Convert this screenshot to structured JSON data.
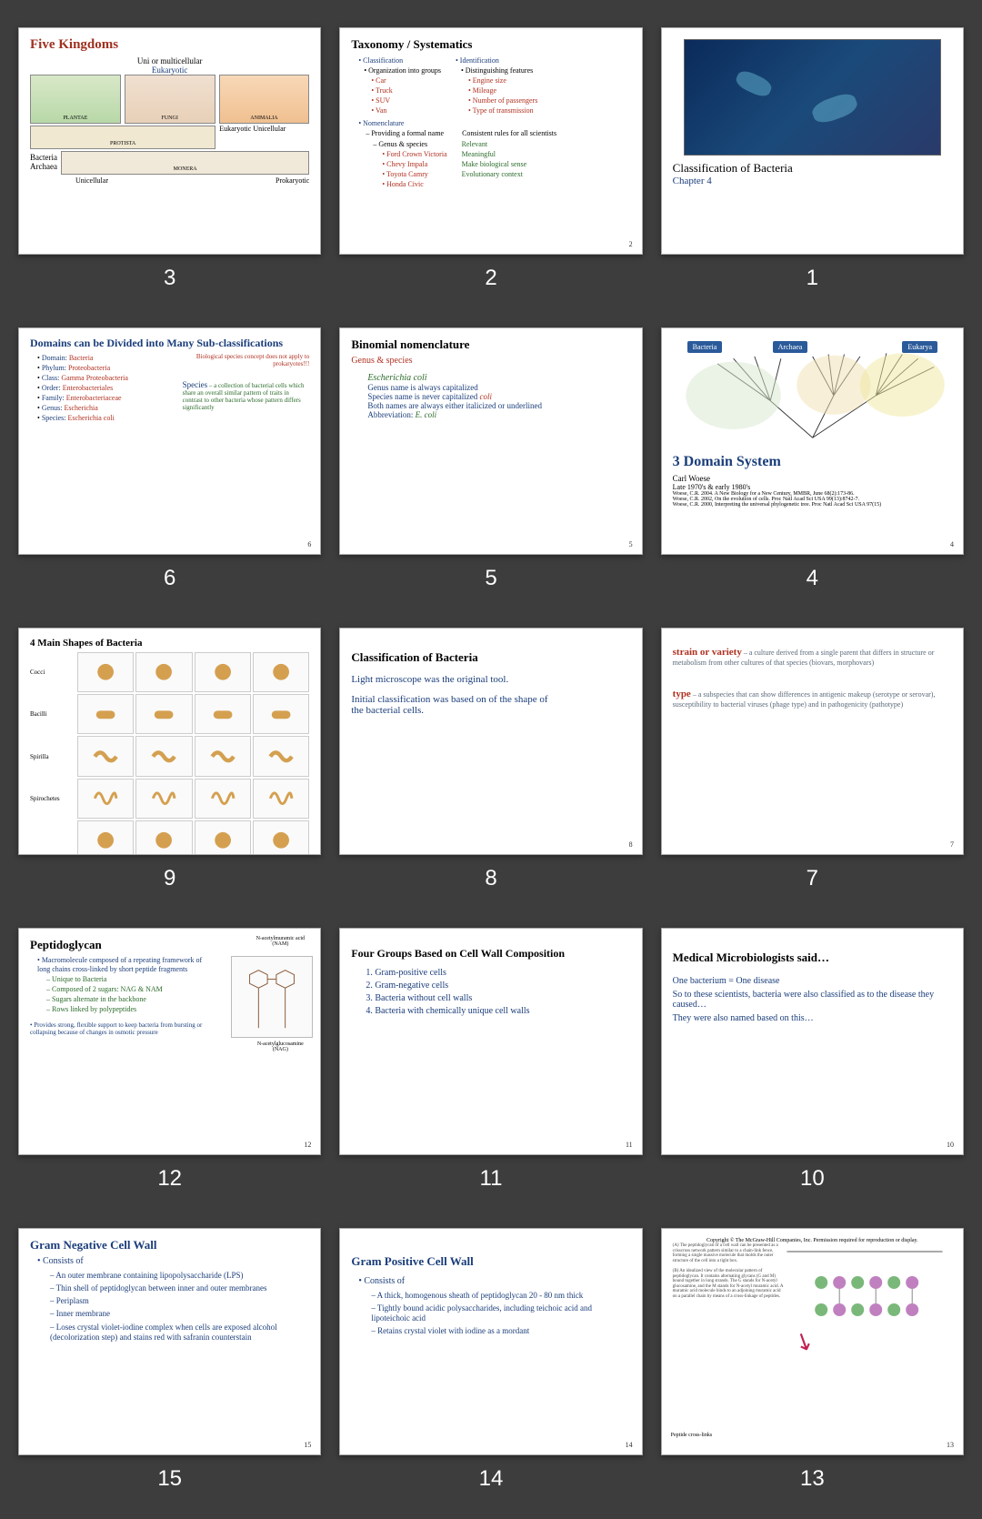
{
  "labels": [
    "3",
    "2",
    "1",
    "6",
    "5",
    "4",
    "9",
    "8",
    "7",
    "12",
    "11",
    "10",
    "15",
    "14",
    "13"
  ],
  "slides": {
    "s3": {
      "title": "Five Kingdoms",
      "uni_multi": "Uni or multicellular",
      "eukaryotic": "Eukaryotic",
      "plantae": "PLANTAE",
      "fungi": "FUNGI",
      "animalia": "ANIMALIA",
      "protista": "PROTISTA",
      "monera": "MONERA",
      "euk_uni": "Eukaryotic Unicellular",
      "bacteria": "Bacteria",
      "archaea": "Archaea",
      "unicellular": "Unicellular",
      "prokaryotic": "Prokaryotic"
    },
    "s2": {
      "title": "Taxonomy / Systematics",
      "classification": "Classification",
      "org": "Organization into groups",
      "vehicles": [
        "Car",
        "Truck",
        "SUV",
        "Van"
      ],
      "identification": "Identification",
      "dist": "Distinguishing features",
      "features": [
        "Engine size",
        "Mileage",
        "Number of passengers",
        "Type of transmission"
      ],
      "nomenclature": "Nomenclature",
      "providing": "Providing a formal name",
      "rules": "Consistent rules for all scientists",
      "genus_species": "Genus & species",
      "cars": [
        "Ford Crown Victoria",
        "Chevy Impala",
        "Toyota Camry",
        "Honda Civic"
      ],
      "meanings": [
        "Relevant",
        "Meaningful",
        "Make biological sense",
        "Evolutionary context"
      ],
      "pg": "2"
    },
    "s1": {
      "title": "Classification of Bacteria",
      "chapter": "Chapter 4"
    },
    "s6": {
      "title": "Domains can be Divided into Many Sub-classifications",
      "note1": "Biological species concept does not apply to prokaryotes!!!",
      "ranks": [
        {
          "k": "Domain:",
          "v": "Bacteria"
        },
        {
          "k": "Phylum:",
          "v": "Proteobacteria"
        },
        {
          "k": "Class:",
          "v": "Gamma Proteobacteria"
        },
        {
          "k": "Order:",
          "v": "Enterobacteriales"
        },
        {
          "k": "Family:",
          "v": "Enterobacteriaceae"
        },
        {
          "k": "Genus:",
          "v": "Escherichia"
        },
        {
          "k": "Species:",
          "v": "Escherichia coli"
        }
      ],
      "species_label": "Species",
      "species_def": "– a collection of bacterial cells which share an overall similar pattern of traits in contrast to other bacteria whose pattern differs significantly",
      "pg": "6"
    },
    "s5": {
      "title": "Binomial nomenclature",
      "sub": "Genus & species",
      "ecoli": "Escherichia coli",
      "r1": "Genus name is always capitalized",
      "r2a": "Species name is never capitalized ",
      "r2b": "coli",
      "r3": "Both names are always either italicized or underlined",
      "r4a": "Abbreviation: ",
      "r4b": "E. coli",
      "pg": "5"
    },
    "s4": {
      "tags": {
        "bacteria": "Bacteria",
        "archaea": "Archaea",
        "eukarya": "Eukarya"
      },
      "tag_colors": {
        "bacteria": "#2a5a9a",
        "archaea": "#2a5a9a",
        "eukarya": "#2a5a9a"
      },
      "title": "3 Domain System",
      "author": "Carl Woese",
      "date": "Late 1970's & early 1980's",
      "refs": [
        "Woese, C.R. 2004. A New Biology for a New Century, MMBR, June 68(2):173-86.",
        "Woese, C.R. 2002, On the evolution of cells. Proc Natl Acad Sci USA 99(13):8742-7.",
        "Woese, C.R. 2000, Interpreting the universal phylogenetic tree. Proc Natl Acad Sci USA 97(15)"
      ],
      "pg": "4"
    },
    "s9": {
      "title": "4 Main Shapes of Bacteria",
      "shapes": [
        "Cocci",
        "Bacilli",
        "Spirilla",
        "Spirochetes"
      ]
    },
    "s8": {
      "title": "Classification of Bacteria",
      "p1": "Light microscope was the original tool.",
      "p2": "Initial classification was based on of the shape of the bacterial cells.",
      "pg": "8"
    },
    "s7": {
      "strain": "strain or variety",
      "strain_def": " – a culture derived from a single parent that differs in structure or metabolism from other cultures of that species (biovars, morphovars)",
      "type": "type",
      "type_def": " – a subspecies that can show differences in antigenic makeup (serotype or serovar), susceptibility to bacterial viruses (phage type) and in pathogenicity (pathotype)",
      "pg": "7"
    },
    "s12": {
      "title": "Peptidoglycan",
      "nam": "N-acetylmuramic acid (NAM)",
      "nag": "N-acetylglucosamine (NAG)",
      "bullets": [
        "Macromolecule composed of a repeating framework of long chains cross-linked by short peptide fragments"
      ],
      "subs": [
        "Unique to Bacteria",
        "Composed of 2 sugars: NAG & NAM",
        "Sugars alternate in the backbone",
        "Rows linked by polypeptides"
      ],
      "b2": "Provides strong, flexible support to keep bacteria from bursting or collapsing because of changes in osmotic pressure",
      "pg": "12"
    },
    "s11": {
      "title": "Four Groups Based on Cell Wall Composition",
      "items": [
        "Gram-positive cells",
        "Gram-negative cells",
        "Bacteria without cell walls",
        "Bacteria with chemically unique cell walls"
      ],
      "pg": "11"
    },
    "s10": {
      "title": "Medical Microbiologists said…",
      "p1": "One bacterium = One disease",
      "p2": "So to these scientists, bacteria were also classified as to the disease they caused…",
      "p3": "They were also named based on this…",
      "pg": "10"
    },
    "s15": {
      "title": "Gram Negative Cell Wall",
      "consists": "Consists of",
      "items": [
        "An outer membrane containing lipopolysaccharide (LPS)",
        "Thin shell of peptidoglycan between inner and outer membranes",
        "Periplasm",
        "Inner membrane",
        "Loses crystal violet-iodine complex when cells are exposed alcohol (decolorization step) and stains red with safranin counterstain"
      ],
      "pg": "15"
    },
    "s14": {
      "title": "Gram Positive Cell Wall",
      "consists": "Consists of",
      "items": [
        "A thick, homogenous sheath of peptidoglycan 20 - 80 nm thick",
        "Tightly bound acidic polysaccharides, including teichoic acid and lipoteichoic acid",
        "Retains crystal violet with iodine as a mordant"
      ],
      "pg": "14"
    },
    "s13": {
      "copyright": "Copyright © The McGraw-Hill Companies, Inc. Permission required for reproduction or display.",
      "txta": "(A) The peptidoglycan of a cell wall can be presented as a crisscross network pattern similar to a chain-link fence, forming a single massive molecule that molds the outer structure of the cell into a tight box.",
      "txtb": "(B) An idealized view of the molecular pattern of peptidoglycan. It contains alternating glycans (G and M) bound together in long strands. The G stands for N-acetyl glucosamine, and the M stands for N-acetyl muramic acid. A muramic acid molecule binds to an adjoining muramic acid on a parallel chain by means of a cross-linkage of peptides.",
      "meg": "Peptide cross-links",
      "pg": "13"
    }
  }
}
